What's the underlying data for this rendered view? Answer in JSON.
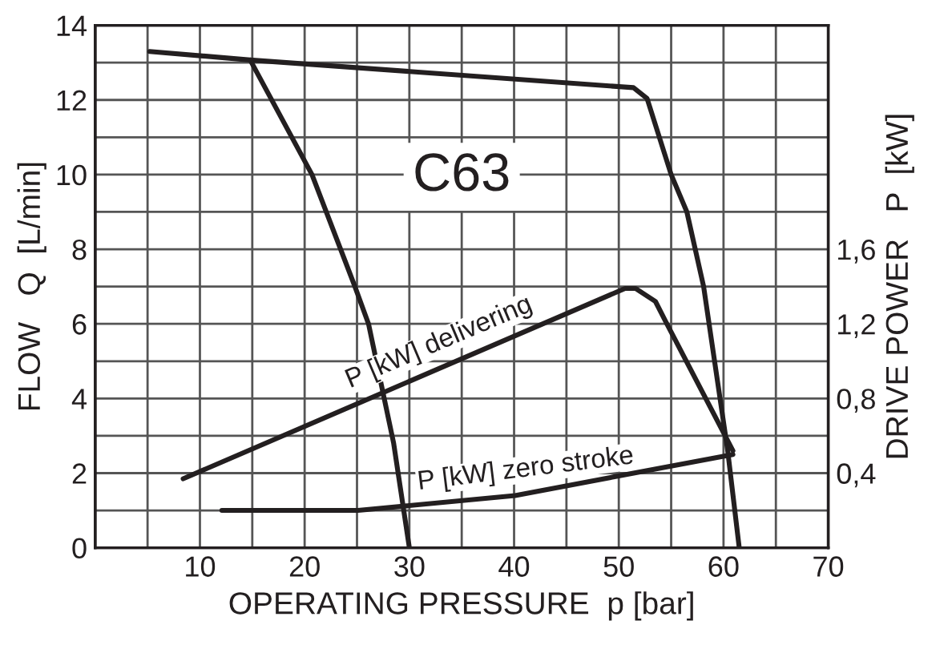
{
  "chart_data": {
    "type": "line",
    "xlabel": "OPERATING PRESSURE  p [bar]",
    "ylabel": "FLOW   Q  [L/min]",
    "y2label": "DRIVE POWER   P  [kW]",
    "annotations": [
      "C63"
    ],
    "xlim": [
      0,
      70
    ],
    "ylim": [
      0,
      14
    ],
    "y2lim": [
      0,
      2.8
    ],
    "xticks": [
      {
        "value": 5,
        "label": null
      },
      10,
      {
        "value": 15,
        "label": null
      },
      20,
      {
        "value": 25,
        "label": null
      },
      30,
      {
        "value": 35,
        "label": null
      },
      40,
      {
        "value": 45,
        "label": null
      },
      50,
      {
        "value": 55,
        "label": null
      },
      60,
      {
        "value": 65,
        "label": null
      },
      70
    ],
    "yticks": [
      0,
      {
        "value": 1,
        "label": null
      },
      2,
      {
        "value": 3,
        "label": null
      },
      4,
      {
        "value": 5,
        "label": null
      },
      6,
      {
        "value": 7,
        "label": null
      },
      8,
      {
        "value": 9,
        "label": null
      },
      10,
      {
        "value": 11,
        "label": null
      },
      12,
      {
        "value": 13,
        "label": null
      },
      14
    ],
    "y2ticks": [
      {
        "value": 0.4,
        "label": "0,4"
      },
      {
        "value": 0.8,
        "label": "0,8"
      },
      {
        "value": 1.2,
        "label": "1,2"
      },
      {
        "value": 1.6,
        "label": "1,6"
      }
    ],
    "grid": true,
    "line_style": "solid",
    "marker": "none",
    "series": [
      {
        "color": "#231f20",
        "x": [
          5.2,
          14.8,
          51.4,
          52.7,
          55.0,
          56.5,
          58.1,
          60.4,
          61.5
        ],
        "values": [
          13.3,
          13.07,
          12.33,
          12.04,
          10,
          9.0,
          7.0,
          2.6,
          0
        ]
      },
      {
        "color": "#231f20",
        "x": [
          14.8,
          20.7,
          24.8,
          26.1,
          28.5,
          30.0
        ],
        "values": [
          13.07,
          10,
          7.0,
          6.0,
          2.8,
          0
        ]
      },
      {
        "name": "P [kW] delivering",
        "axis": "y2",
        "color": "#231f20",
        "x": [
          8.4,
          50.6,
          51.6,
          53.5,
          54.5,
          60.9
        ],
        "values": [
          0.37,
          1.39,
          1.39,
          1.32,
          1.21,
          0.52
        ]
      },
      {
        "name": "P [kW] zero stroke",
        "axis": "y2",
        "color": "#231f20",
        "x": [
          12.1,
          25.1,
          40.1,
          60.9
        ],
        "values": [
          0.2,
          0.2,
          0.28,
          0.5
        ]
      }
    ]
  }
}
